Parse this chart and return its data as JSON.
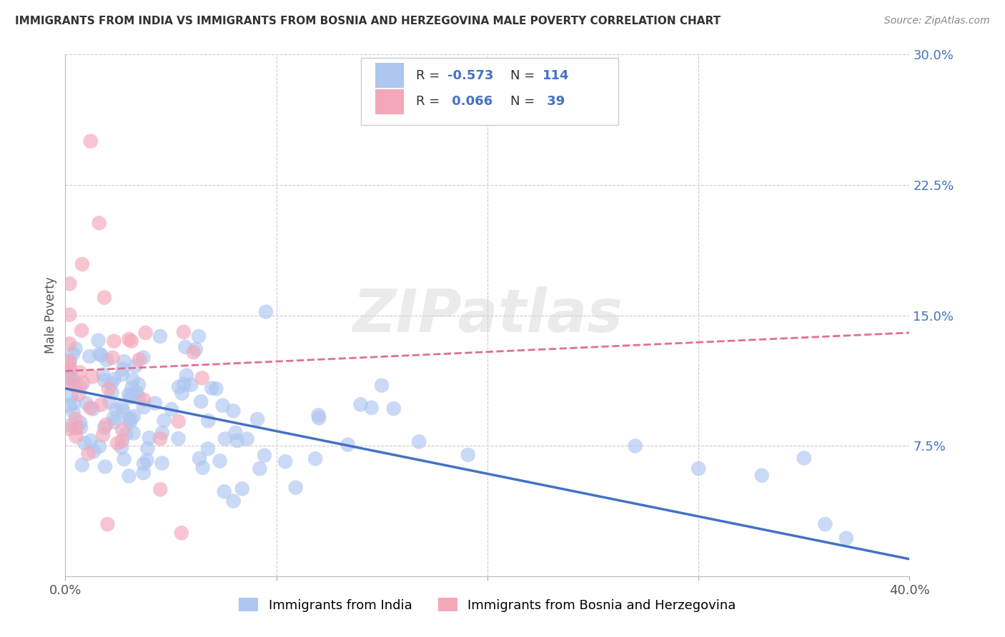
{
  "title": "IMMIGRANTS FROM INDIA VS IMMIGRANTS FROM BOSNIA AND HERZEGOVINA MALE POVERTY CORRELATION CHART",
  "source": "Source: ZipAtlas.com",
  "xlabel_india": "Immigrants from India",
  "xlabel_bosnia": "Immigrants from Bosnia and Herzegovina",
  "ylabel": "Male Poverty",
  "xlim": [
    0.0,
    0.4
  ],
  "ylim": [
    0.0,
    0.3
  ],
  "xticks": [
    0.0,
    0.1,
    0.2,
    0.3,
    0.4
  ],
  "xtick_labels": [
    "0.0%",
    "",
    "",
    "",
    "40.0%"
  ],
  "yticks": [
    0.0,
    0.075,
    0.15,
    0.225,
    0.3
  ],
  "ytick_labels": [
    "",
    "7.5%",
    "15.0%",
    "22.5%",
    "30.0%"
  ],
  "india_R": -0.573,
  "india_N": 114,
  "bosnia_R": 0.066,
  "bosnia_N": 39,
  "india_color": "#aec6f0",
  "bosnia_color": "#f4a7b9",
  "india_line_color": "#4472c4",
  "bosnia_line_color": "#e07090",
  "background_color": "#ffffff",
  "grid_color": "#cccccc",
  "watermark": "ZIPatlas",
  "india_line_x0": 0.0,
  "india_line_y0": 0.108,
  "india_line_x1": 0.4,
  "india_line_y1": 0.01,
  "bosnia_line_x0": 0.0,
  "bosnia_line_y0": 0.118,
  "bosnia_line_x1": 0.4,
  "bosnia_line_y1": 0.14
}
